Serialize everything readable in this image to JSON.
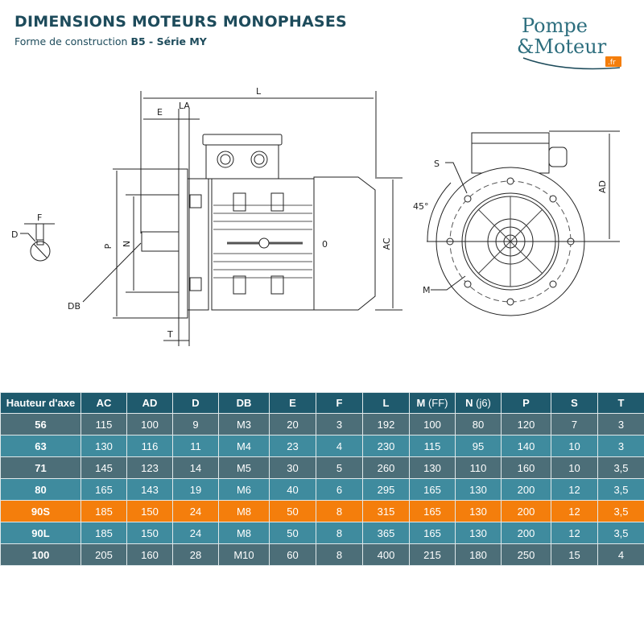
{
  "header": {
    "title": "DIMENSIONS MOTEURS MONOPHASES",
    "subtitle_prefix": "Forme de construction ",
    "subtitle_bold": "B5 - Série MY"
  },
  "logo": {
    "line1": "Pompe",
    "line2": "&Moteur",
    "tld": ".fr"
  },
  "drawing": {
    "labels": {
      "L": "L",
      "E": "E",
      "LA": "LA",
      "F": "F",
      "D": "D",
      "P": "P",
      "N": "N",
      "DB": "DB",
      "T": "T",
      "AC": "AC",
      "O": "0",
      "S": "S",
      "angle": "45°",
      "M": "M",
      "AD": "AD"
    }
  },
  "colors": {
    "header": "#1f5a6d",
    "row_dark": "#4c6e78",
    "row_light": "#3f8b9e",
    "highlight": "#f47e0c",
    "title": "#1d4b5b"
  },
  "table": {
    "columns": [
      {
        "main": "Hauteur d'axe",
        "sub": ""
      },
      {
        "main": "AC",
        "sub": ""
      },
      {
        "main": "AD",
        "sub": ""
      },
      {
        "main": "D",
        "sub": ""
      },
      {
        "main": "DB",
        "sub": ""
      },
      {
        "main": "E",
        "sub": ""
      },
      {
        "main": "F",
        "sub": ""
      },
      {
        "main": "L",
        "sub": ""
      },
      {
        "main": "M",
        "sub": " (FF)"
      },
      {
        "main": "N",
        "sub": " (j6)"
      },
      {
        "main": "P",
        "sub": ""
      },
      {
        "main": "S",
        "sub": ""
      },
      {
        "main": "T",
        "sub": ""
      }
    ],
    "rows": [
      {
        "style": "dark",
        "cells": [
          "56",
          "115",
          "100",
          "9",
          "M3",
          "20",
          "3",
          "192",
          "100",
          "80",
          "120",
          "7",
          "3"
        ]
      },
      {
        "style": "light",
        "cells": [
          "63",
          "130",
          "116",
          "11",
          "M4",
          "23",
          "4",
          "230",
          "115",
          "95",
          "140",
          "10",
          "3"
        ]
      },
      {
        "style": "dark",
        "cells": [
          "71",
          "145",
          "123",
          "14",
          "M5",
          "30",
          "5",
          "260",
          "130",
          "110",
          "160",
          "10",
          "3,5"
        ]
      },
      {
        "style": "light",
        "cells": [
          "80",
          "165",
          "143",
          "19",
          "M6",
          "40",
          "6",
          "295",
          "165",
          "130",
          "200",
          "12",
          "3,5"
        ]
      },
      {
        "style": "hl",
        "cells": [
          "90S",
          "185",
          "150",
          "24",
          "M8",
          "50",
          "8",
          "315",
          "165",
          "130",
          "200",
          "12",
          "3,5"
        ]
      },
      {
        "style": "light",
        "cells": [
          "90L",
          "185",
          "150",
          "24",
          "M8",
          "50",
          "8",
          "365",
          "165",
          "130",
          "200",
          "12",
          "3,5"
        ]
      },
      {
        "style": "dark",
        "cells": [
          "100",
          "205",
          "160",
          "28",
          "M10",
          "60",
          "8",
          "400",
          "215",
          "180",
          "250",
          "15",
          "4"
        ]
      }
    ]
  }
}
